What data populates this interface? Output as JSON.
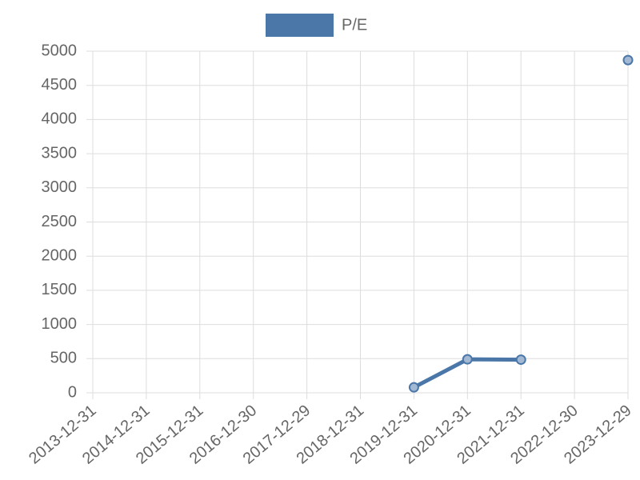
{
  "chart_data": {
    "type": "line",
    "categories": [
      "2013-12-31",
      "2014-12-31",
      "2015-12-31",
      "2016-12-30",
      "2017-12-29",
      "2018-12-31",
      "2019-12-31",
      "2020-12-31",
      "2021-12-31",
      "2022-12-30",
      "2023-12-29"
    ],
    "series": [
      {
        "name": "P/E",
        "color": "#4a76a8",
        "values": [
          null,
          null,
          null,
          null,
          null,
          null,
          80,
          490,
          485,
          null,
          4870
        ]
      }
    ],
    "ylim": [
      0,
      5000
    ],
    "yticks": [
      0,
      500,
      1000,
      1500,
      2000,
      2500,
      3000,
      3500,
      4000,
      4500,
      5000
    ],
    "grid": true,
    "legend": "top"
  }
}
